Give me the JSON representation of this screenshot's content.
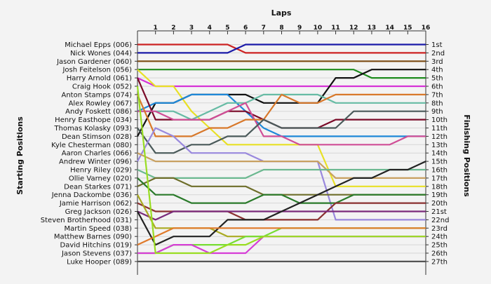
{
  "chart_data": {
    "type": "line",
    "xlabel": "Laps",
    "ylabel_left": "Starting Positions",
    "ylabel_right": "Finishing Positions",
    "x": [
      0,
      1,
      2,
      3,
      4,
      5,
      6,
      7,
      8,
      9,
      10,
      11,
      12,
      13,
      14,
      15,
      16
    ],
    "x_tick_labels": [
      "1",
      "2",
      "3",
      "4",
      "5",
      "6",
      "7",
      "8",
      "9",
      "10",
      "11",
      "12",
      "13",
      "14",
      "15",
      "16"
    ],
    "finishing_labels": [
      "1st",
      "2nd",
      "3rd",
      "4th",
      "5th",
      "6th",
      "7th",
      "8th",
      "9th",
      "10th",
      "11th",
      "12th",
      "13th",
      "14th",
      "15th",
      "16th",
      "17th",
      "18th",
      "19th",
      "20th",
      "21st",
      "22nd",
      "23rd",
      "24th",
      "25th",
      "26th",
      "27th"
    ],
    "series": [
      {
        "name": "Michael Epps (006)",
        "color": "#cc2222",
        "positions": [
          1,
          1,
          1,
          1,
          1,
          1,
          2,
          2,
          2,
          2,
          2,
          2,
          2,
          2,
          2,
          2,
          2
        ]
      },
      {
        "name": "Nick Wones (044)",
        "color": "#1a1aa8",
        "positions": [
          2,
          2,
          2,
          2,
          2,
          2,
          1,
          1,
          1,
          1,
          1,
          1,
          1,
          1,
          1,
          1,
          1
        ]
      },
      {
        "name": "Jason Gardener (060)",
        "color": "#7b4a12",
        "positions": [
          3,
          3,
          3,
          3,
          3,
          3,
          3,
          3,
          3,
          3,
          3,
          3,
          3,
          3,
          3,
          3,
          3
        ]
      },
      {
        "name": "Josh Feitelson (056)",
        "color": "#1e8c1e",
        "positions": [
          4,
          4,
          4,
          4,
          4,
          4,
          4,
          4,
          4,
          4,
          4,
          4,
          4,
          5,
          5,
          5,
          5
        ]
      },
      {
        "name": "Harry Arnold (061)",
        "color": "#d633d6",
        "positions": [
          5,
          6,
          6,
          6,
          6,
          6,
          6,
          6,
          6,
          6,
          6,
          6,
          6,
          6,
          6,
          6,
          6
        ]
      },
      {
        "name": "Craig Hook (052)",
        "color": "#e8e026",
        "positions": [
          4,
          6,
          6,
          9,
          11,
          13,
          13,
          13,
          13,
          13,
          13,
          18,
          18,
          18,
          18,
          18,
          18
        ]
      },
      {
        "name": "Anton Stamps (074)",
        "color": "#111111",
        "positions": [
          12,
          8,
          8,
          7,
          7,
          7,
          7,
          8,
          8,
          8,
          8,
          5,
          5,
          4,
          4,
          4,
          4
        ]
      },
      {
        "name": "Alex Rowley (067)",
        "color": "#1e88d8",
        "positions": [
          9,
          8,
          8,
          7,
          7,
          7,
          9,
          11,
          12,
          12,
          12,
          12,
          12,
          12,
          12,
          12,
          12
        ]
      },
      {
        "name": "Andy Foskett (086)",
        "color": "#66bba4",
        "positions": [
          9,
          9,
          9,
          10,
          9,
          8,
          8,
          7,
          7,
          7,
          7,
          8,
          8,
          8,
          8,
          8,
          8
        ]
      },
      {
        "name": "Henry Easthope (034)",
        "color": "#7a0a28",
        "positions": [
          5,
          10,
          10,
          10,
          10,
          9,
          9,
          10,
          11,
          11,
          11,
          10,
          10,
          10,
          10,
          10,
          10
        ]
      },
      {
        "name": "Thomas Kolasky (093)",
        "color": "#d04e96",
        "positions": [
          9,
          9,
          10,
          10,
          10,
          9,
          8,
          12,
          12,
          13,
          13,
          13,
          13,
          13,
          13,
          12,
          12
        ]
      },
      {
        "name": "Dean Stimson (028)",
        "color": "#d8782a",
        "positions": [
          7,
          12,
          12,
          12,
          11,
          11,
          10,
          10,
          7,
          8,
          8,
          7,
          7,
          7,
          7,
          7,
          7
        ]
      },
      {
        "name": "Kyle Chesterman (080)",
        "color": "#4a5a5a",
        "positions": [
          11,
          14,
          14,
          13,
          13,
          12,
          12,
          10,
          11,
          11,
          11,
          11,
          9,
          9,
          9,
          9,
          9
        ]
      },
      {
        "name": "Aaron Charles (066)",
        "color": "#9988dd",
        "positions": [
          15,
          11,
          12,
          14,
          14,
          14,
          14,
          15,
          15,
          15,
          15,
          22,
          22,
          22,
          22,
          22,
          22
        ]
      },
      {
        "name": "Andrew Winter (096)",
        "color": "#c8a060",
        "positions": [
          14,
          15,
          15,
          15,
          15,
          15,
          15,
          15,
          15,
          15,
          15,
          17,
          17,
          17,
          17,
          17,
          17
        ]
      },
      {
        "name": "Henry Riley (029)",
        "color": "#6bb890",
        "positions": [
          16,
          17,
          17,
          17,
          17,
          17,
          17,
          16,
          16,
          16,
          16,
          16,
          16,
          16,
          16,
          16,
          16
        ]
      },
      {
        "name": "Ollie Varney (020)",
        "color": "#6e6e2a",
        "positions": [
          18,
          17,
          17,
          18,
          18,
          18,
          18,
          19,
          19,
          19,
          19,
          19,
          19,
          19,
          19,
          19,
          19
        ]
      },
      {
        "name": "Dean Starkes (071)",
        "color": "#2a7a2a",
        "positions": [
          17,
          19,
          19,
          20,
          20,
          20,
          20,
          19,
          19,
          20,
          20,
          20,
          19,
          19,
          19,
          19,
          19
        ]
      },
      {
        "name": "Jenna Dackombe (036)",
        "color": "#8a3030",
        "positions": [
          20,
          21,
          21,
          21,
          21,
          21,
          22,
          22,
          22,
          22,
          22,
          20,
          20,
          20,
          20,
          20,
          20
        ]
      },
      {
        "name": "Jamie Harrison (062)",
        "color": "#7a2a7a",
        "positions": [
          21,
          22,
          21,
          21,
          21,
          21,
          21,
          21,
          21,
          21,
          21,
          21,
          21,
          21,
          21,
          21,
          21
        ]
      },
      {
        "name": "Greg Jackson (026)",
        "color": "#aaaa22",
        "positions": [
          19,
          23,
          23,
          23,
          23,
          24,
          24,
          24,
          24,
          24,
          24,
          24,
          24,
          24,
          24,
          24,
          24
        ]
      },
      {
        "name": "Steven Brotherhood (031)",
        "color": "#222222",
        "positions": [
          21,
          25,
          24,
          24,
          24,
          22,
          22,
          22,
          21,
          20,
          19,
          18,
          17,
          17,
          16,
          16,
          15
        ]
      },
      {
        "name": "Martin Speed (038)",
        "color": "#77dd33",
        "positions": [
          26,
          26,
          25,
          25,
          25,
          25,
          24,
          24,
          23,
          23,
          23,
          23,
          23,
          23,
          23,
          23,
          23
        ]
      },
      {
        "name": "Matthew Barnes (090)",
        "color": "#e07a2a",
        "positions": [
          25,
          24,
          23,
          23,
          23,
          23,
          23,
          23,
          23,
          23,
          23,
          23,
          23,
          23,
          23,
          23,
          23
        ]
      },
      {
        "name": "David Hitchins (019)",
        "color": "#d63dd6",
        "positions": [
          26,
          26,
          25,
          25,
          26,
          26,
          26,
          24,
          24,
          24,
          24,
          24,
          24,
          24,
          24,
          24,
          24
        ]
      },
      {
        "name": "Jason Stevens (037)",
        "color": "#99dd22",
        "positions": [
          6,
          26,
          26,
          26,
          26,
          25,
          25,
          24,
          24,
          24,
          24,
          24,
          24,
          24,
          24,
          24,
          24
        ]
      },
      {
        "name": "Luke Hooper (089)",
        "color": "#555555",
        "positions": [
          27,
          27,
          27,
          27,
          27,
          27,
          27,
          27,
          27,
          27,
          27,
          27,
          27,
          27,
          27,
          27,
          27
        ]
      }
    ]
  }
}
